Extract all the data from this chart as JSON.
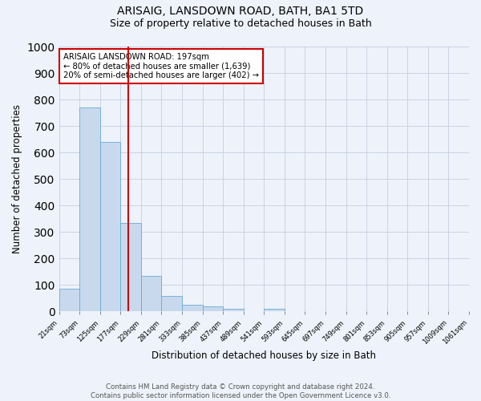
{
  "title": "ARISAIG, LANSDOWN ROAD, BATH, BA1 5TD",
  "subtitle": "Size of property relative to detached houses in Bath",
  "xlabel": "Distribution of detached houses by size in Bath",
  "ylabel": "Number of detached properties",
  "bar_values": [
    85,
    770,
    640,
    335,
    135,
    60,
    25,
    20,
    10,
    0,
    10,
    0,
    0,
    0,
    0,
    0,
    0,
    0,
    0,
    0
  ],
  "bin_edges": [
    21,
    73,
    125,
    177,
    229,
    281,
    333,
    385,
    437,
    489,
    541,
    593,
    645,
    697,
    749,
    801,
    853,
    905,
    957,
    1009,
    1061
  ],
  "tick_labels": [
    "21sqm",
    "73sqm",
    "125sqm",
    "177sqm",
    "229sqm",
    "281sqm",
    "333sqm",
    "385sqm",
    "437sqm",
    "489sqm",
    "541sqm",
    "593sqm",
    "645sqm",
    "697sqm",
    "749sqm",
    "801sqm",
    "853sqm",
    "905sqm",
    "957sqm",
    "1009sqm",
    "1061sqm"
  ],
  "bar_color": "#c8d9ee",
  "bar_edge_color": "#6aaad4",
  "grid_color": "#c5cfe0",
  "vline_x": 197,
  "vline_color": "#cc0000",
  "annotation_text": "ARISAIG LANSDOWN ROAD: 197sqm\n← 80% of detached houses are smaller (1,639)\n20% of semi-detached houses are larger (402) →",
  "annotation_box_facecolor": "#ffffff",
  "annotation_box_edge": "#cc0000",
  "ylim": [
    0,
    1000
  ],
  "yticks": [
    0,
    100,
    200,
    300,
    400,
    500,
    600,
    700,
    800,
    900,
    1000
  ],
  "footnote": "Contains HM Land Registry data © Crown copyright and database right 2024.\nContains public sector information licensed under the Open Government Licence v3.0.",
  "background_color": "#eef2fa",
  "title_fontsize": 10,
  "subtitle_fontsize": 9
}
